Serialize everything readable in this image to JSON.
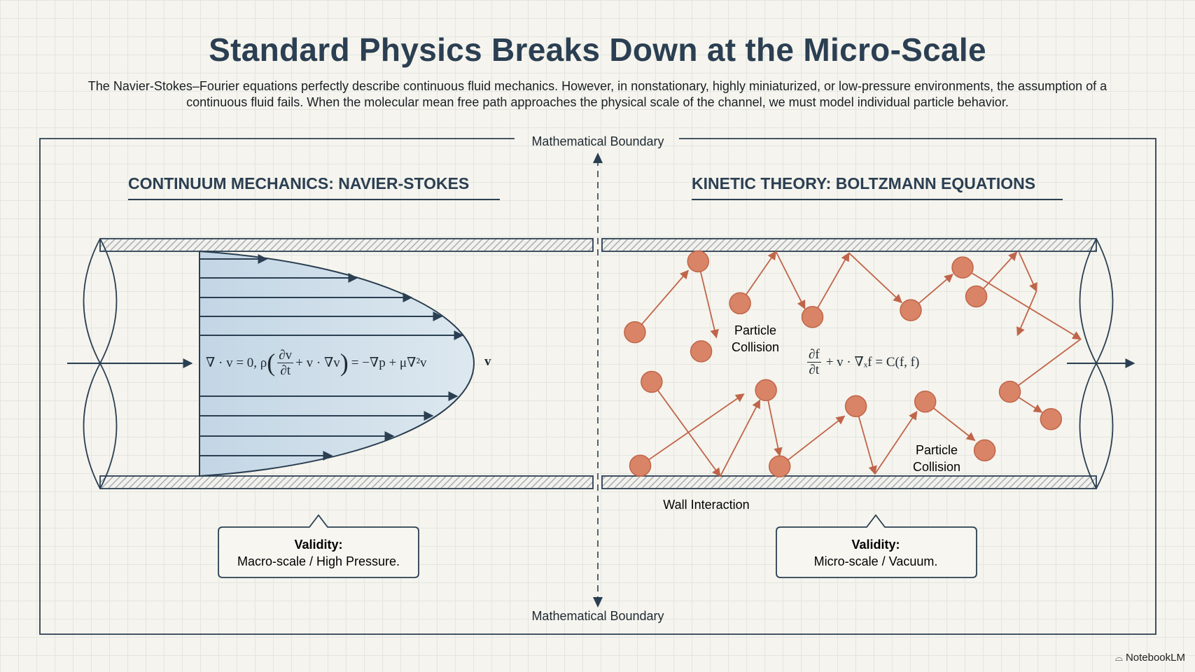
{
  "title": "Standard Physics Breaks Down at the Micro-Scale",
  "description": "The Navier-Stokes–Fourier equations perfectly describe continuous fluid mechanics. However, in nonstationary, highly miniaturized, or low-pressure environments, the assumption of a continuous fluid fails. When the molecular mean free path approaches the physical scale of the channel, we must model individual particle behavior.",
  "boundary": {
    "top_label": "Mathematical Boundary",
    "bottom_label": "Mathematical Boundary"
  },
  "left": {
    "heading": "CONTINUUM MECHANICS: NAVIER-STOKES",
    "equation": {
      "part1": "∇ · v = 0, ρ",
      "num": "∂v",
      "den": "∂t",
      "part2": "+ v · ∇v",
      "part3": "= −∇p + μ∇²v"
    },
    "vector_label": "v⃗",
    "validity_title": "Validity:",
    "validity_text": "Macro-scale / High Pressure."
  },
  "right": {
    "heading": "KINETIC THEORY: BOLTZMANN EQUATIONS",
    "equation": {
      "num": "∂f",
      "den": "∂t",
      "rest": "+ v · ∇ₓf = C(f, f)"
    },
    "collision_label_1": [
      "Particle",
      "Collision"
    ],
    "collision_label_2": [
      "Particle",
      "Collision"
    ],
    "wall_label": "Wall Interaction",
    "validity_title": "Validity:",
    "validity_text": "Micro-scale / Vacuum."
  },
  "brand": "NotebookLM",
  "colors": {
    "ink": "#2b3f52",
    "particle": "#d98466",
    "particle_stroke": "#c0654a",
    "fluid": "#c6d8e6"
  }
}
